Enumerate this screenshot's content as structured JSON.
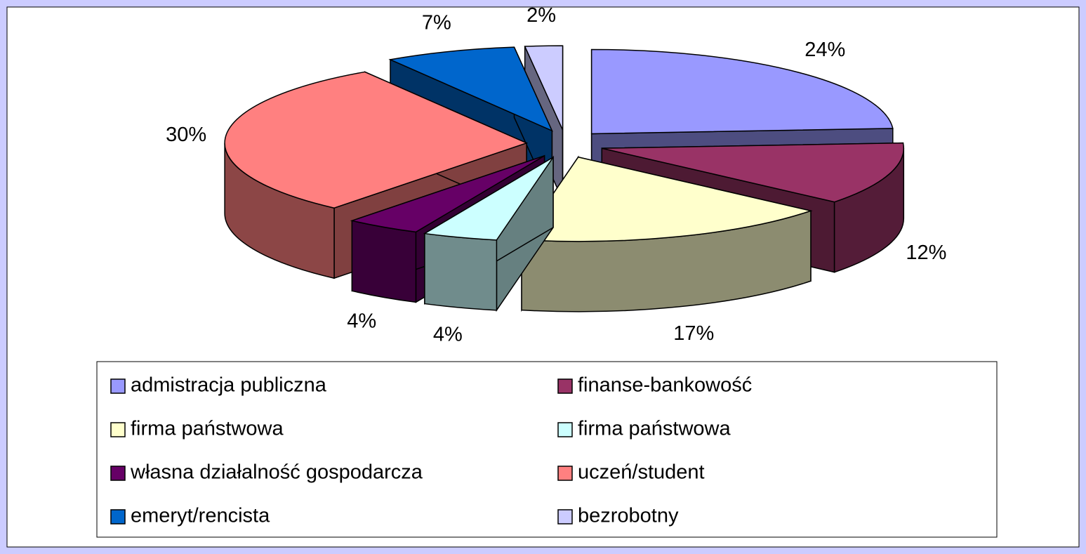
{
  "chart_data": {
    "type": "pie3d",
    "categories": [
      "admistracja publiczna",
      "finanse-bankowość",
      "firma państwowa",
      "firma państwowa",
      "własna działalność gospodarcza",
      "uczeń/student",
      "emeryt/rencista",
      "bezrobotny"
    ],
    "values": [
      24,
      12,
      17,
      4,
      4,
      30,
      7,
      2
    ],
    "value_labels": [
      "24%",
      "12%",
      "17%",
      "4%",
      "4%",
      "30%",
      "7%",
      "2%"
    ],
    "colors": [
      "#9999ff",
      "#993366",
      "#ffffcc",
      "#ccffff",
      "#660066",
      "#ff8080",
      "#0066cc",
      "#ccccff"
    ],
    "legend": "bottom"
  }
}
